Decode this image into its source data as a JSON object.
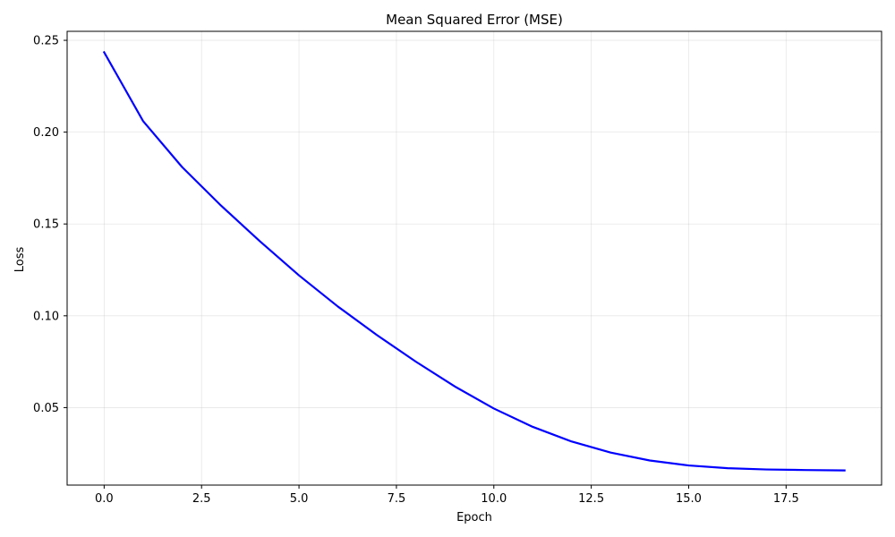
{
  "chart_data": {
    "type": "line",
    "title": "Mean Squared Error (MSE)",
    "xlabel": "Epoch",
    "ylabel": "Loss",
    "xlim": [
      -0.95,
      19.95
    ],
    "ylim": [
      0.0078,
      0.2549
    ],
    "xticks": [
      0.0,
      2.5,
      5.0,
      7.5,
      10.0,
      12.5,
      15.0,
      17.5
    ],
    "xtick_labels": [
      "0.0",
      "2.5",
      "5.0",
      "7.5",
      "10.0",
      "12.5",
      "15.0",
      "17.5"
    ],
    "yticks": [
      0.05,
      0.1,
      0.15,
      0.2,
      0.25
    ],
    "ytick_labels": [
      "0.05",
      "0.10",
      "0.15",
      "0.20",
      "0.25"
    ],
    "grid": true,
    "series": [
      {
        "color": "#0000ff",
        "x": [
          0,
          1,
          2,
          3,
          4,
          5,
          6,
          7,
          8,
          9,
          10,
          11,
          12,
          13,
          14,
          15,
          16,
          17,
          18,
          19
        ],
        "y": [
          0.2435,
          0.206,
          0.181,
          0.16,
          0.1405,
          0.122,
          0.105,
          0.0895,
          0.075,
          0.0615,
          0.0495,
          0.0395,
          0.0315,
          0.0255,
          0.0212,
          0.0185,
          0.017,
          0.0163,
          0.016,
          0.0158
        ]
      }
    ]
  }
}
